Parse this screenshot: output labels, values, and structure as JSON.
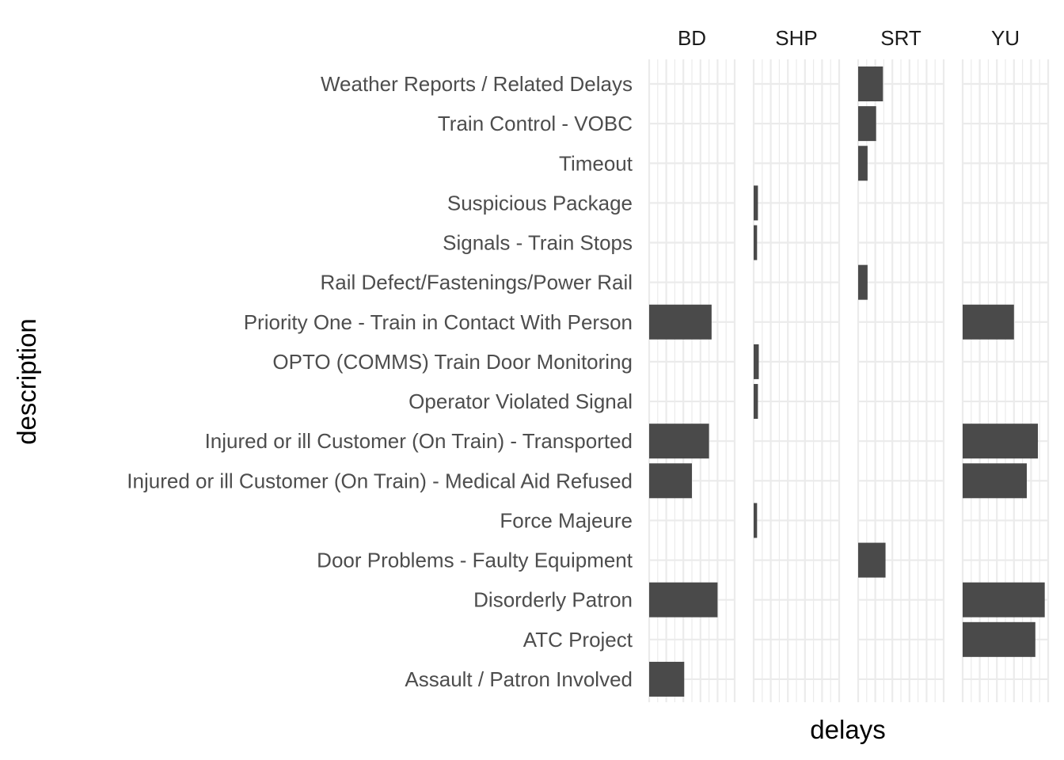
{
  "chart_data": {
    "type": "bar",
    "orientation": "horizontal",
    "facet_by": "line",
    "xlabel": "delays",
    "ylabel": "description",
    "xlim": [
      0,
      10
    ],
    "grid": true,
    "legend": "none",
    "bar_color": "#4a4a4a",
    "grid_color": "#ebebeb",
    "panels": [
      "BD",
      "SHP",
      "SRT",
      "YU"
    ],
    "categories": [
      "Weather Reports / Related Delays",
      "Train Control - VOBC",
      "Timeout",
      "Suspicious Package",
      "Signals - Train Stops",
      "Rail Defect/Fastenings/Power Rail",
      "Priority One - Train in Contact With Person",
      "OPTO (COMMS) Train Door Monitoring",
      "Operator Violated Signal",
      "Injured or ill Customer (On Train) - Transported",
      "Injured or ill Customer (On Train) - Medical Aid Refused",
      "Force Majeure",
      "Door Problems - Faulty Equipment",
      "Disorderly Patron",
      "ATC Project",
      "Assault / Patron Involved"
    ],
    "series": [
      {
        "panel": "BD",
        "values": [
          0,
          0,
          0,
          0,
          0,
          0,
          7.3,
          0,
          0,
          7.0,
          5.0,
          0,
          0,
          8.0,
          0,
          4.1
        ]
      },
      {
        "panel": "SHP",
        "values": [
          0,
          0,
          0,
          0.5,
          0.4,
          0,
          0,
          0.6,
          0.5,
          0,
          0,
          0.4,
          0,
          0,
          0,
          0
        ]
      },
      {
        "panel": "SRT",
        "values": [
          2.9,
          2.1,
          1.1,
          0,
          0,
          1.1,
          0,
          0,
          0,
          0,
          0,
          0,
          3.2,
          0,
          0,
          0
        ]
      },
      {
        "panel": "YU",
        "values": [
          0,
          0,
          0,
          0,
          0,
          0,
          6.0,
          0,
          0,
          8.8,
          7.5,
          0,
          0,
          9.6,
          8.5,
          0
        ]
      }
    ]
  }
}
